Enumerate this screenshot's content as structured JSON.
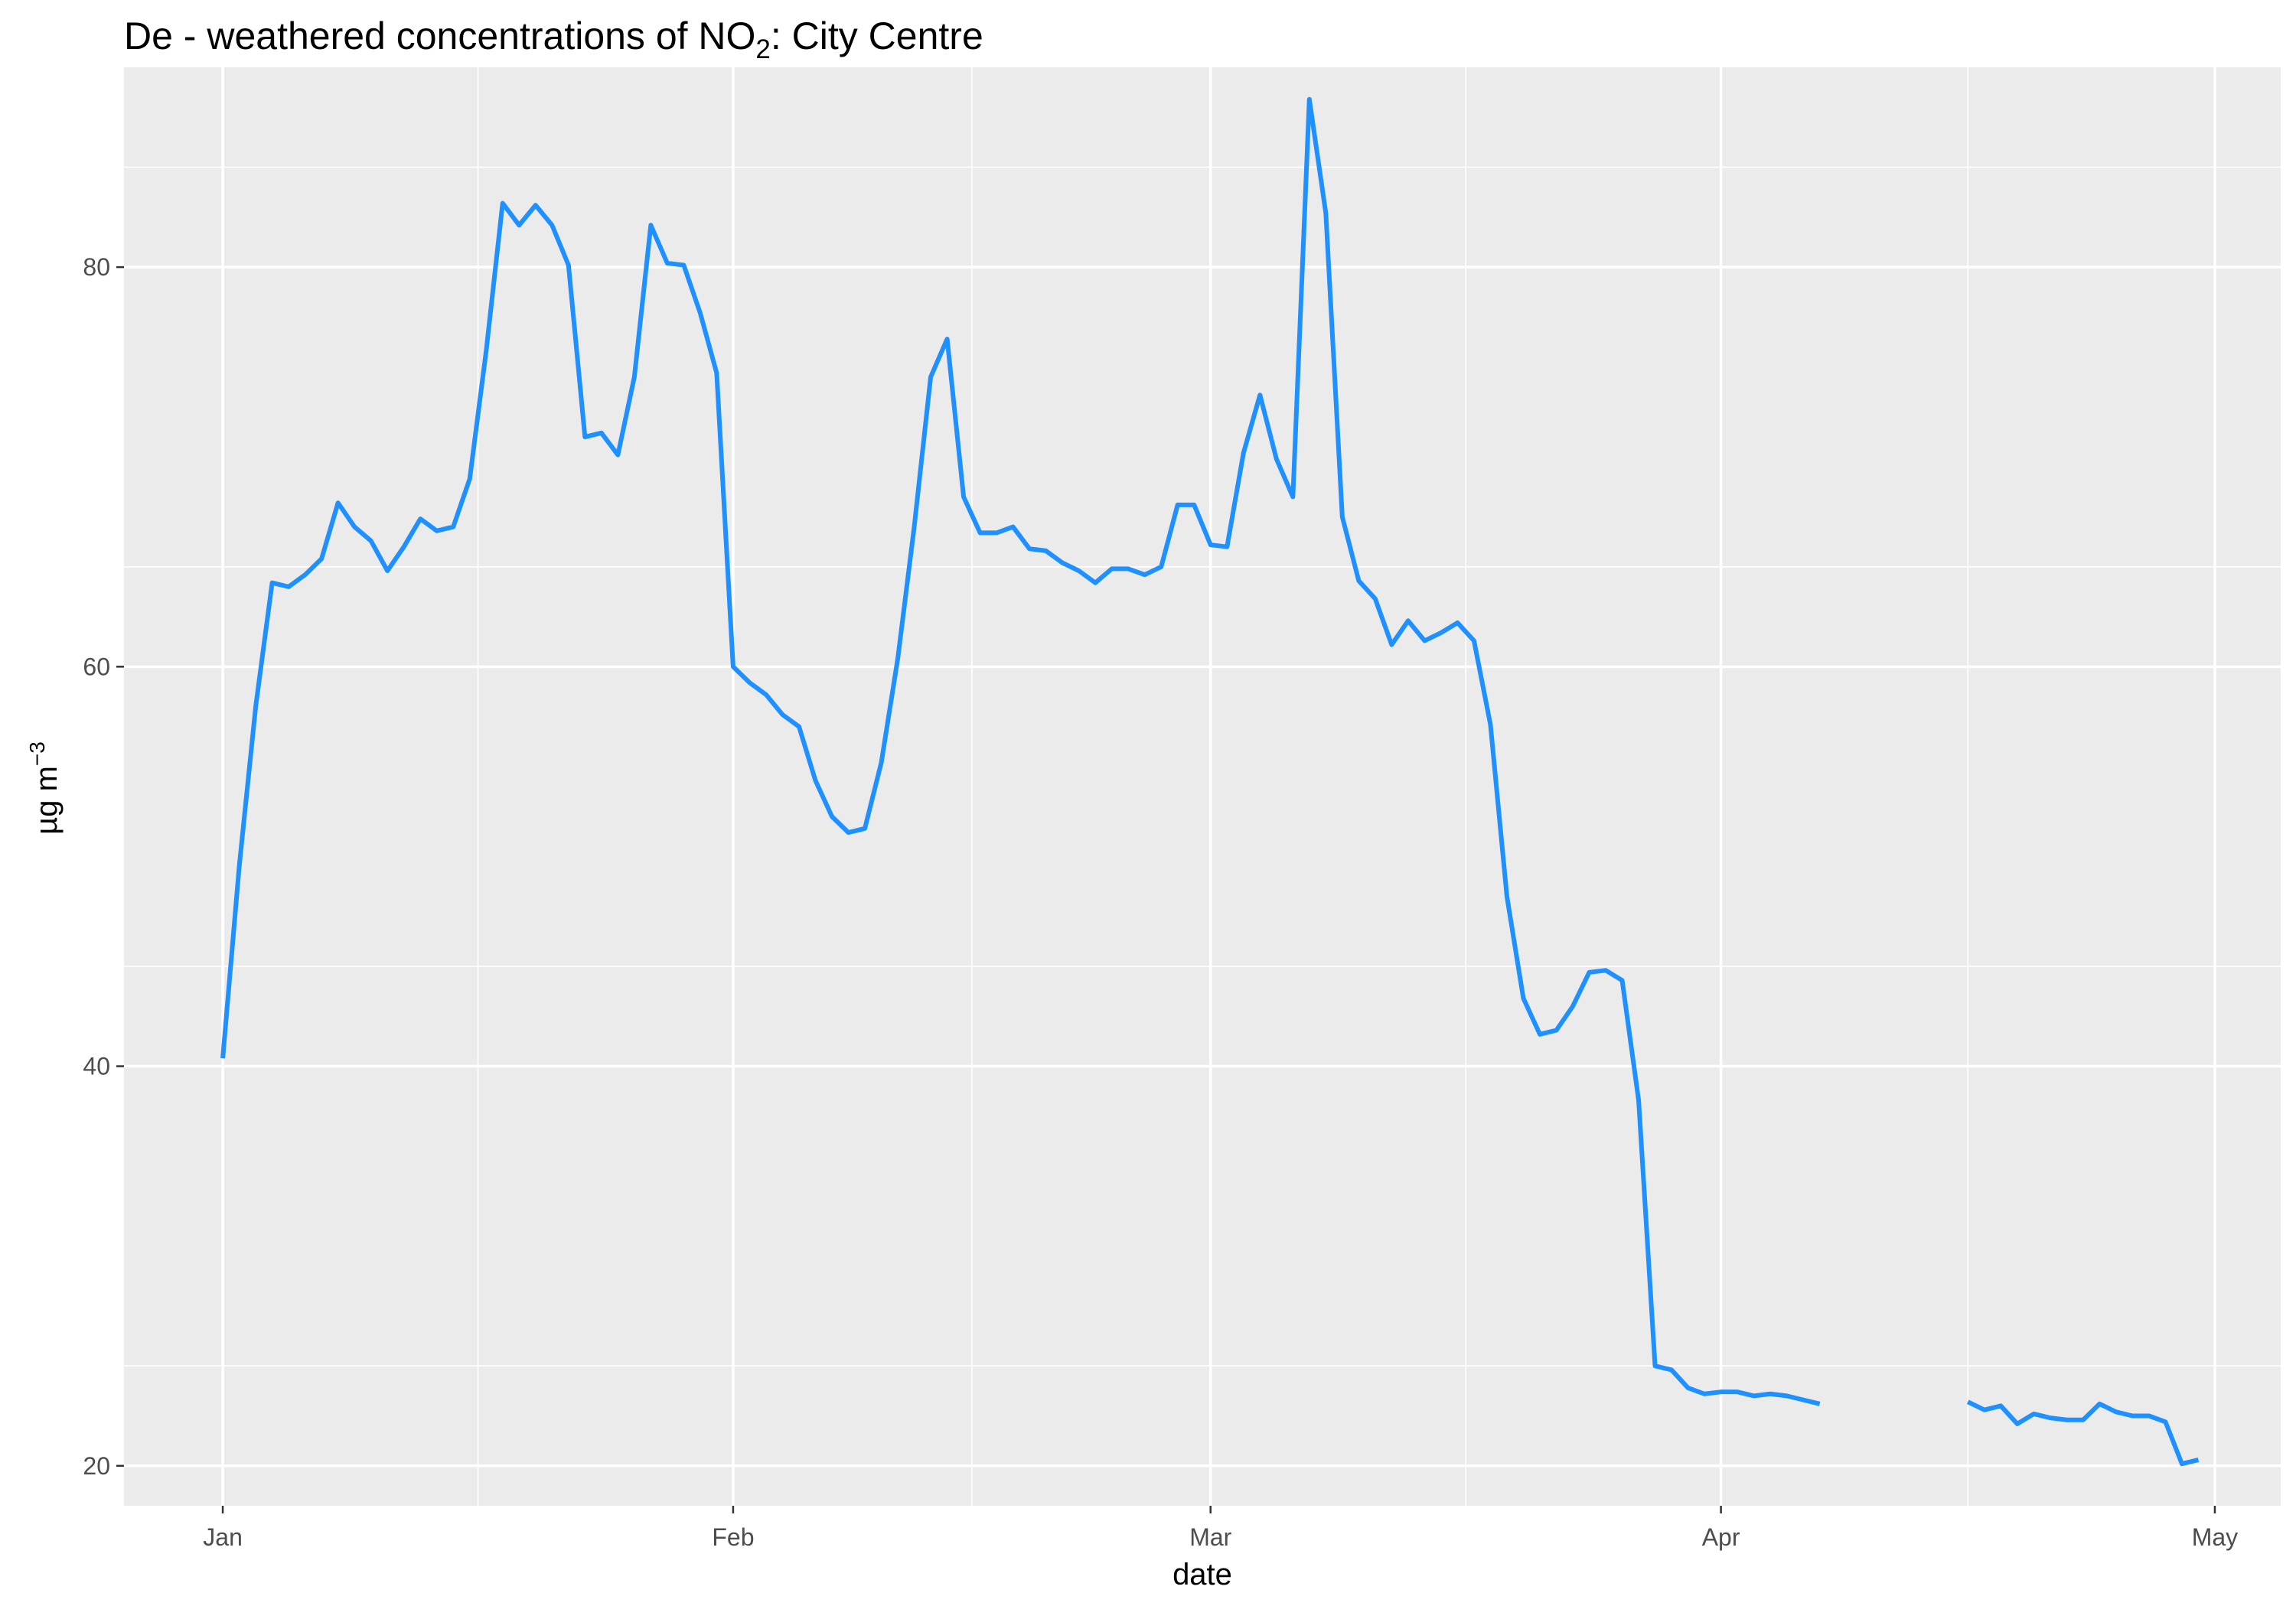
{
  "chart_data": {
    "type": "line",
    "title": "De - weathered concentrations of NO",
    "title_subscript": "2",
    "title_suffix": ": City Centre",
    "xlabel": "date",
    "ylabel": "µg m",
    "ylabel_superscript": "−3",
    "x_ticks": [
      "2020-01-01",
      "2020-02-01",
      "2020-03-01",
      "2020-04-01",
      "2020-05-01"
    ],
    "x_tick_labels": [
      "Jan",
      "Feb",
      "Mar",
      "Apr",
      "May"
    ],
    "y_ticks": [
      20,
      40,
      60,
      80
    ],
    "y_tick_labels": [
      "20",
      "40",
      "60",
      "80"
    ],
    "xlim": [
      "2019-12-26",
      "2020-05-05"
    ],
    "ylim": [
      18,
      90
    ],
    "grid": true,
    "legend": "none",
    "colors": {
      "panel": "#ebebeb",
      "grid": "#ffffff",
      "line": "#1e90ff"
    },
    "series": [
      {
        "segments": [
          [
            [
              "2020-01-01",
              40.4
            ],
            [
              "2020-01-02",
              50.0
            ],
            [
              "2020-01-03",
              58.0
            ],
            [
              "2020-01-04",
              64.2
            ],
            [
              "2020-01-05",
              64.0
            ],
            [
              "2020-01-06",
              64.6
            ],
            [
              "2020-01-07",
              65.4
            ],
            [
              "2020-01-08",
              68.2
            ],
            [
              "2020-01-09",
              67.0
            ],
            [
              "2020-01-10",
              66.3
            ],
            [
              "2020-01-11",
              64.8
            ],
            [
              "2020-01-12",
              66.0
            ],
            [
              "2020-01-13",
              67.4
            ],
            [
              "2020-01-14",
              66.8
            ],
            [
              "2020-01-15",
              67.0
            ],
            [
              "2020-01-16",
              69.4
            ],
            [
              "2020-01-17",
              75.8
            ],
            [
              "2020-01-18",
              83.2
            ],
            [
              "2020-01-19",
              82.1
            ],
            [
              "2020-01-20",
              83.1
            ],
            [
              "2020-01-21",
              82.1
            ],
            [
              "2020-01-22",
              80.1
            ],
            [
              "2020-01-23",
              71.5
            ],
            [
              "2020-01-24",
              71.7
            ],
            [
              "2020-01-25",
              70.6
            ],
            [
              "2020-01-26",
              74.5
            ],
            [
              "2020-01-27",
              82.1
            ],
            [
              "2020-01-28",
              80.2
            ],
            [
              "2020-01-29",
              80.1
            ],
            [
              "2020-01-30",
              77.7
            ],
            [
              "2020-01-31",
              74.7
            ],
            [
              "2020-02-01",
              60.0
            ],
            [
              "2020-02-02",
              59.2
            ],
            [
              "2020-02-03",
              58.6
            ],
            [
              "2020-02-04",
              57.6
            ],
            [
              "2020-02-05",
              57.0
            ],
            [
              "2020-02-06",
              54.3
            ],
            [
              "2020-02-07",
              52.5
            ],
            [
              "2020-02-08",
              51.7
            ],
            [
              "2020-02-09",
              51.9
            ],
            [
              "2020-02-10",
              55.2
            ],
            [
              "2020-02-11",
              60.4
            ],
            [
              "2020-02-12",
              67.0
            ],
            [
              "2020-02-13",
              74.5
            ],
            [
              "2020-02-14",
              76.4
            ],
            [
              "2020-02-15",
              68.5
            ],
            [
              "2020-02-16",
              66.7
            ],
            [
              "2020-02-17",
              66.7
            ],
            [
              "2020-02-18",
              67.0
            ],
            [
              "2020-02-19",
              65.9
            ],
            [
              "2020-02-20",
              65.8
            ],
            [
              "2020-02-21",
              65.2
            ],
            [
              "2020-02-22",
              64.8
            ],
            [
              "2020-02-23",
              64.2
            ],
            [
              "2020-02-24",
              64.9
            ],
            [
              "2020-02-25",
              64.9
            ],
            [
              "2020-02-26",
              64.6
            ],
            [
              "2020-02-27",
              65.0
            ],
            [
              "2020-02-28",
              68.1
            ],
            [
              "2020-02-29",
              68.1
            ],
            [
              "2020-03-01",
              66.1
            ],
            [
              "2020-03-02",
              66.0
            ],
            [
              "2020-03-03",
              70.7
            ],
            [
              "2020-03-04",
              73.6
            ],
            [
              "2020-03-05",
              70.4
            ],
            [
              "2020-03-06",
              68.5
            ],
            [
              "2020-03-07",
              88.4
            ],
            [
              "2020-03-08",
              82.7
            ],
            [
              "2020-03-09",
              67.5
            ],
            [
              "2020-03-10",
              64.3
            ],
            [
              "2020-03-11",
              63.4
            ],
            [
              "2020-03-12",
              61.1
            ],
            [
              "2020-03-13",
              62.3
            ],
            [
              "2020-03-14",
              61.3
            ],
            [
              "2020-03-15",
              61.7
            ],
            [
              "2020-03-16",
              62.2
            ],
            [
              "2020-03-17",
              61.3
            ],
            [
              "2020-03-18",
              57.1
            ],
            [
              "2020-03-19",
              48.5
            ],
            [
              "2020-03-20",
              43.4
            ],
            [
              "2020-03-21",
              41.6
            ],
            [
              "2020-03-22",
              41.8
            ],
            [
              "2020-03-23",
              43.0
            ],
            [
              "2020-03-24",
              44.7
            ],
            [
              "2020-03-25",
              44.8
            ],
            [
              "2020-03-26",
              44.3
            ],
            [
              "2020-03-27",
              38.3
            ],
            [
              "2020-03-28",
              25.0
            ],
            [
              "2020-03-29",
              24.8
            ],
            [
              "2020-03-30",
              23.9
            ],
            [
              "2020-03-31",
              23.6
            ],
            [
              "2020-04-01",
              23.7
            ],
            [
              "2020-04-02",
              23.7
            ],
            [
              "2020-04-03",
              23.5
            ],
            [
              "2020-04-04",
              23.6
            ],
            [
              "2020-04-05",
              23.5
            ],
            [
              "2020-04-06",
              23.3
            ],
            [
              "2020-04-07",
              23.1
            ]
          ],
          [
            [
              "2020-04-16",
              23.2
            ],
            [
              "2020-04-17",
              22.8
            ],
            [
              "2020-04-18",
              23.0
            ],
            [
              "2020-04-19",
              22.1
            ],
            [
              "2020-04-20",
              22.6
            ],
            [
              "2020-04-21",
              22.4
            ],
            [
              "2020-04-22",
              22.3
            ],
            [
              "2020-04-23",
              22.3
            ],
            [
              "2020-04-24",
              23.1
            ],
            [
              "2020-04-25",
              22.7
            ],
            [
              "2020-04-26",
              22.5
            ],
            [
              "2020-04-27",
              22.5
            ],
            [
              "2020-04-28",
              22.2
            ],
            [
              "2020-04-29",
              20.1
            ],
            [
              "2020-04-30",
              20.3
            ]
          ]
        ]
      }
    ]
  }
}
